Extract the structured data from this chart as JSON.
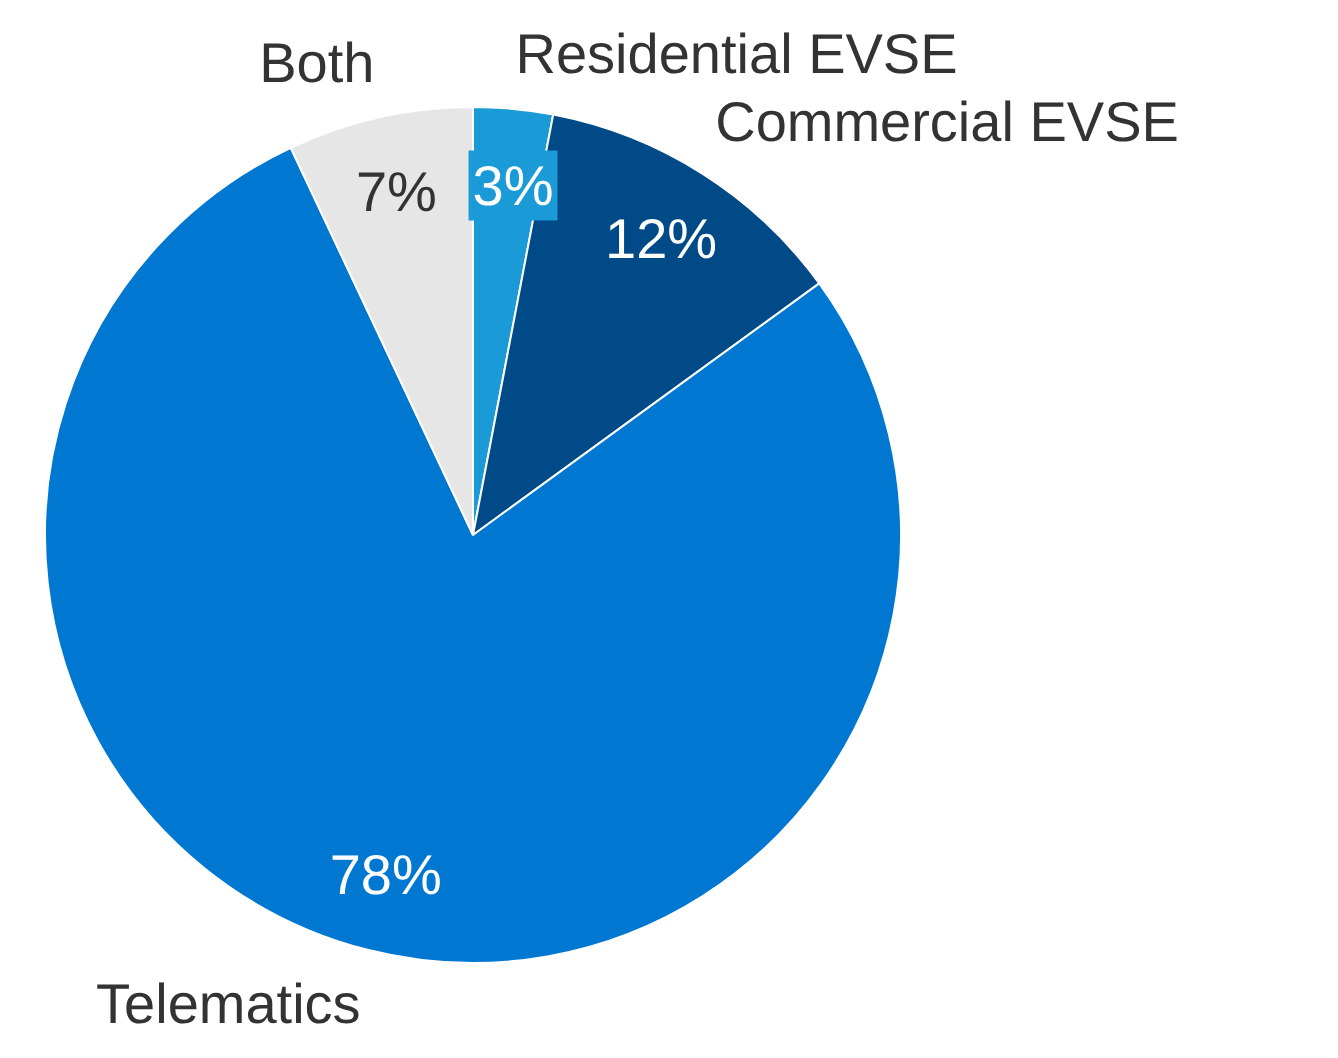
{
  "chart_data": {
    "type": "pie",
    "categories": [
      "Residential EVSE",
      "Commercial EVSE",
      "Telematics",
      "Both"
    ],
    "values": [
      3,
      12,
      78,
      7
    ],
    "colors": [
      "#1a9ad6",
      "#004b87",
      "#0078d2",
      "#e6e6e6"
    ],
    "value_labels": [
      "3%",
      "12%",
      "78%",
      "7%"
    ]
  }
}
